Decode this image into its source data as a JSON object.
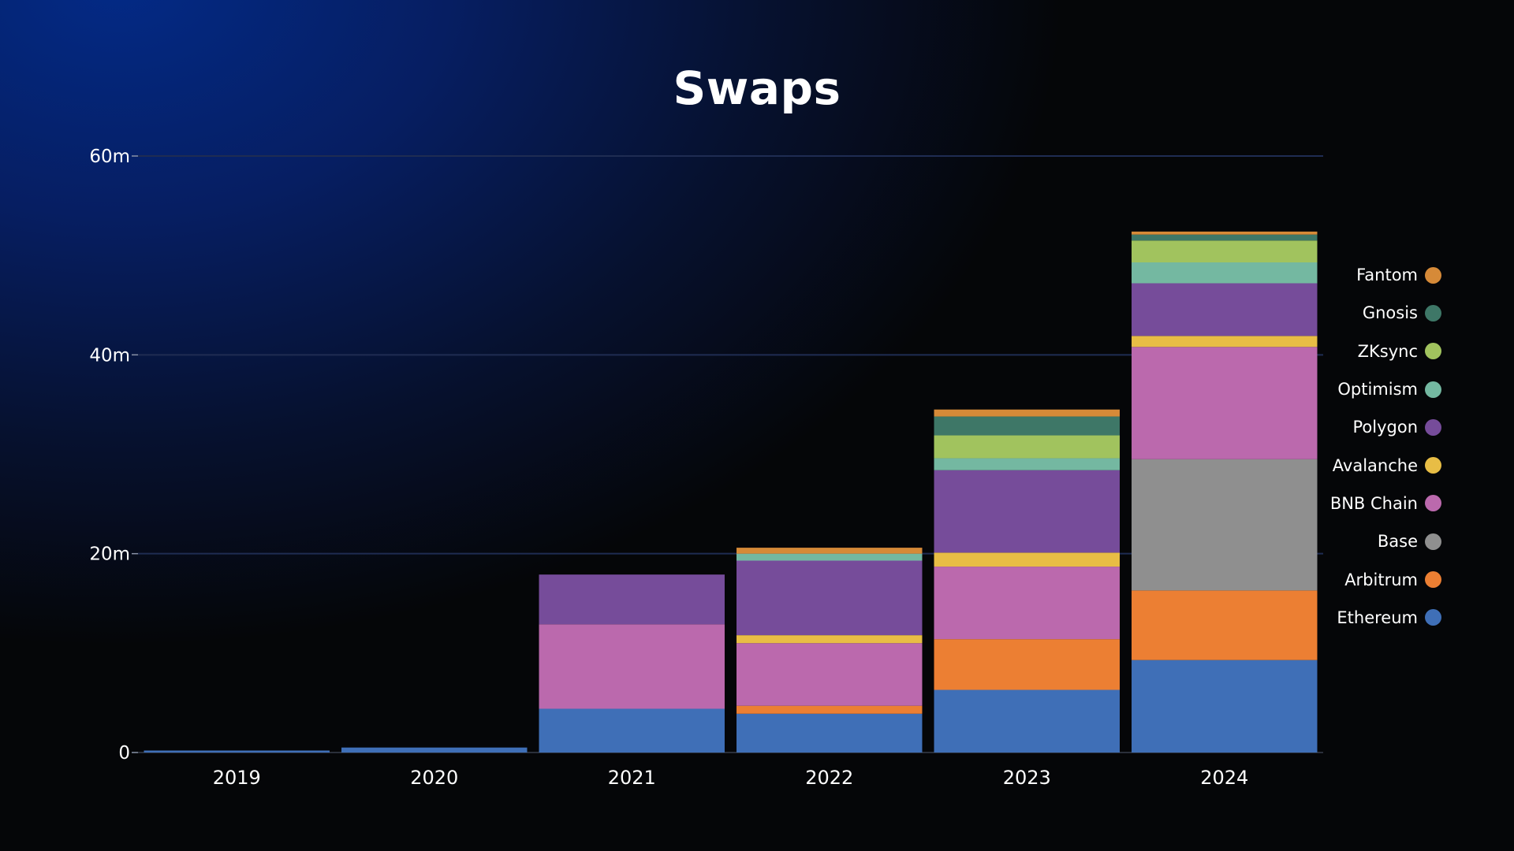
{
  "chart_data": {
    "type": "bar",
    "stacked": true,
    "title": "Swaps",
    "xlabel": "",
    "ylabel": "",
    "ylim": [
      0,
      60
    ],
    "y_ticks": [
      0,
      20,
      40,
      60
    ],
    "y_tick_labels": [
      "0",
      "20m",
      "40m",
      "60m"
    ],
    "grid": true,
    "legend_position": "right",
    "categories": [
      "2019",
      "2020",
      "2021",
      "2022",
      "2023",
      "2024"
    ],
    "series": [
      {
        "name": "Ethereum",
        "color": "#3f6fb7",
        "values": [
          0.2,
          0.5,
          4.4,
          3.9,
          6.3,
          9.3
        ]
      },
      {
        "name": "Arbitrum",
        "color": "#ec7f33",
        "values": [
          0,
          0,
          0,
          0.8,
          5.1,
          7.0
        ]
      },
      {
        "name": "Base",
        "color": "#8f8f8f",
        "values": [
          0,
          0,
          0,
          0,
          0,
          13.2
        ]
      },
      {
        "name": "BNB Chain",
        "color": "#bb69ad",
        "values": [
          0,
          0,
          8.5,
          6.3,
          7.3,
          11.3
        ]
      },
      {
        "name": "Avalanche",
        "color": "#e8bd45",
        "values": [
          0,
          0,
          0,
          0.8,
          1.4,
          1.1
        ]
      },
      {
        "name": "Polygon",
        "color": "#764c9a",
        "values": [
          0,
          0,
          5.0,
          7.5,
          8.3,
          5.3
        ]
      },
      {
        "name": "Optimism",
        "color": "#74b8a1",
        "values": [
          0,
          0,
          0,
          0.7,
          1.2,
          2.1
        ]
      },
      {
        "name": "ZKsync",
        "color": "#a1c35e",
        "values": [
          0,
          0,
          0,
          0,
          2.3,
          2.2
        ]
      },
      {
        "name": "Gnosis",
        "color": "#3e7767",
        "values": [
          0,
          0,
          0,
          0,
          1.9,
          0.6
        ]
      },
      {
        "name": "Fantom",
        "color": "#d68a38",
        "values": [
          0,
          0,
          0,
          0.6,
          0.7,
          0.3
        ]
      }
    ],
    "legend_order": [
      "Fantom",
      "Gnosis",
      "ZKsync",
      "Optimism",
      "Polygon",
      "Avalanche",
      "BNB Chain",
      "Base",
      "Arbitrum",
      "Ethereum"
    ]
  }
}
